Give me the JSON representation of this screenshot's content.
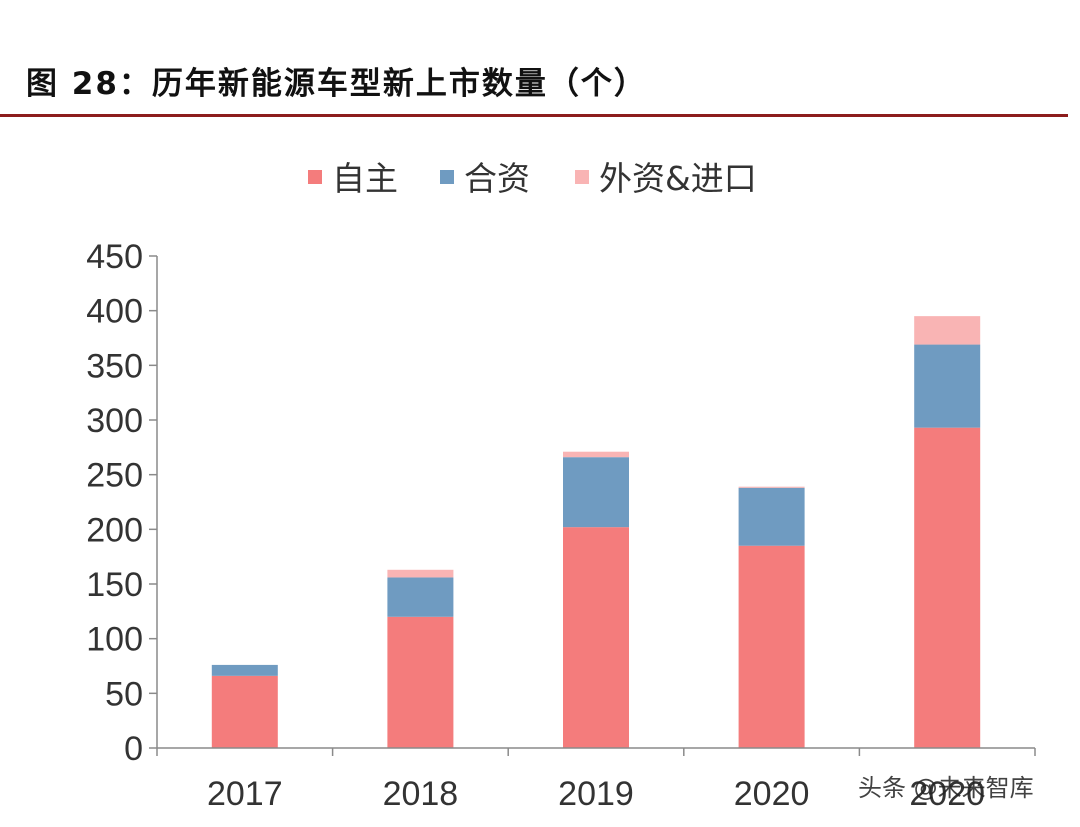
{
  "figure": {
    "title": "图 28：历年新能源车型新上市数量（个）",
    "watermark": "头条 @未来智库"
  },
  "colors": {
    "zizhu": "#f47c7c",
    "hezi": "#6f9bc1",
    "waizi": "#f9b4b4",
    "title_rule": "#8c1c1c"
  },
  "chart_data": {
    "type": "bar",
    "stacked": true,
    "categories": [
      "2017",
      "2018",
      "2019",
      "2020",
      "2020"
    ],
    "series": [
      {
        "name": "自主",
        "values": [
          66,
          120,
          202,
          185,
          293
        ]
      },
      {
        "name": "合资",
        "values": [
          10,
          36,
          64,
          53,
          76
        ]
      },
      {
        "name": "外资&进口",
        "values": [
          0,
          7,
          5,
          1,
          26
        ]
      }
    ],
    "yticks": [
      "0",
      "50",
      "100",
      "150",
      "200",
      "250",
      "300",
      "350",
      "400",
      "450"
    ],
    "ylim": [
      0,
      450
    ],
    "title": "",
    "xlabel": "",
    "ylabel": "",
    "legend": "top-center",
    "grid": false
  }
}
